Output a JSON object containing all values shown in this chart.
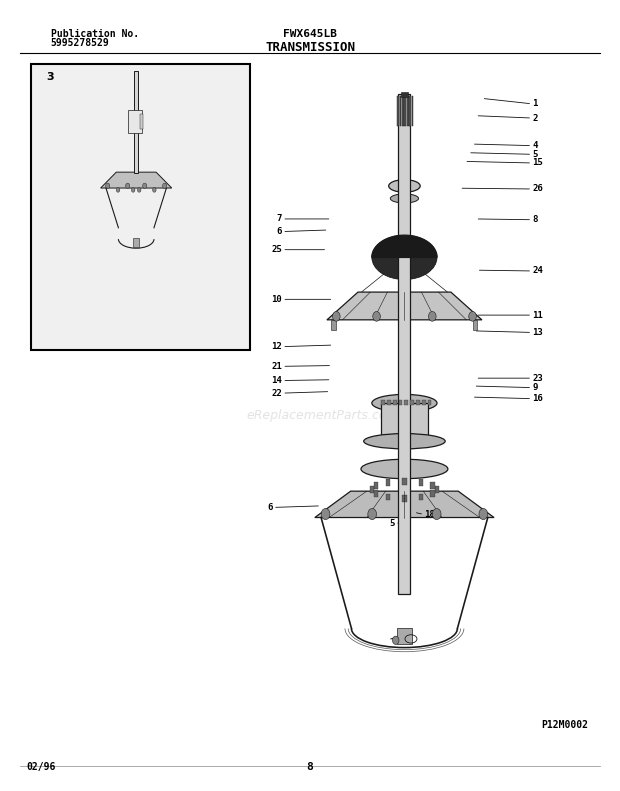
{
  "title_center": "FWX645LB",
  "subtitle_center": "TRANSMISSION",
  "pub_label": "Publication No.",
  "pub_number": "5995278529",
  "date_label": "02/96",
  "page_number": "8",
  "part_code": "P12M0002",
  "background_color": "#ffffff",
  "line_color": "#000000",
  "watermark": "eReplacementParts.com",
  "figsize": [
    6.2,
    7.91
  ],
  "dpi": 100,
  "part_positions": {
    "1": [
      0.86,
      0.87,
      0.778,
      0.877
    ],
    "2": [
      0.86,
      0.852,
      0.768,
      0.855
    ],
    "4": [
      0.86,
      0.817,
      0.762,
      0.819
    ],
    "5a": [
      0.86,
      0.806,
      0.756,
      0.808
    ],
    "15": [
      0.86,
      0.795,
      0.75,
      0.797
    ],
    "26": [
      0.86,
      0.762,
      0.742,
      0.763
    ],
    "7": [
      0.455,
      0.724,
      0.535,
      0.724
    ],
    "8": [
      0.86,
      0.723,
      0.768,
      0.724
    ],
    "6a": [
      0.455,
      0.708,
      0.53,
      0.71
    ],
    "25": [
      0.455,
      0.685,
      0.528,
      0.685
    ],
    "24": [
      0.86,
      0.658,
      0.77,
      0.659
    ],
    "10": [
      0.455,
      0.622,
      0.538,
      0.622
    ],
    "11": [
      0.86,
      0.602,
      0.768,
      0.602
    ],
    "13": [
      0.86,
      0.58,
      0.765,
      0.582
    ],
    "12": [
      0.455,
      0.562,
      0.538,
      0.564
    ],
    "21": [
      0.455,
      0.537,
      0.536,
      0.538
    ],
    "14": [
      0.455,
      0.519,
      0.535,
      0.52
    ],
    "22": [
      0.455,
      0.503,
      0.533,
      0.505
    ],
    "23": [
      0.86,
      0.522,
      0.768,
      0.522
    ],
    "9": [
      0.86,
      0.51,
      0.765,
      0.512
    ],
    "16": [
      0.86,
      0.496,
      0.762,
      0.498
    ],
    "6b": [
      0.44,
      0.358,
      0.518,
      0.36
    ],
    "18": [
      0.685,
      0.349,
      0.668,
      0.352
    ],
    "5b": [
      0.638,
      0.337,
      0.65,
      0.34
    ]
  },
  "label_map": {
    "1": "1",
    "2": "2",
    "4": "4",
    "5a": "5",
    "15": "15",
    "26": "26",
    "7": "7",
    "8": "8",
    "6a": "6",
    "25": "25",
    "24": "24",
    "10": "10",
    "11": "11",
    "13": "13",
    "12": "12",
    "21": "21",
    "14": "14",
    "22": "22",
    "23": "23",
    "9": "9",
    "16": "16",
    "6b": "6",
    "18": "18",
    "5b": "5"
  }
}
